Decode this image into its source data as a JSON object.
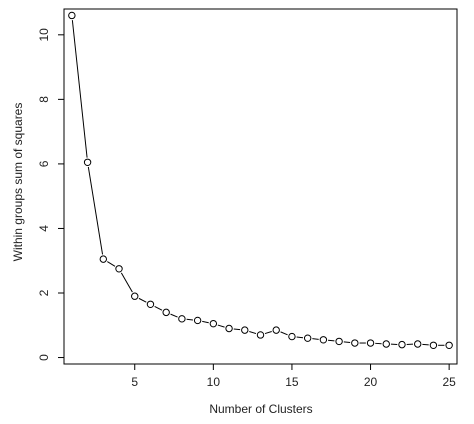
{
  "chart_data": {
    "type": "line",
    "title": "",
    "xlabel": "Number of Clusters",
    "ylabel": "Within groups sum of squares",
    "xlim": [
      0.5,
      25.5
    ],
    "ylim": [
      -0.2,
      10.8
    ],
    "grid": false,
    "legend": "none",
    "line_color": "#000000",
    "marker": "open-circle",
    "xticks": [
      5,
      10,
      15,
      20,
      25
    ],
    "yticks": [
      0,
      2,
      4,
      6,
      8,
      10
    ],
    "series": [
      {
        "x": [
          1,
          2,
          3,
          4,
          5,
          6,
          7,
          8,
          9,
          10,
          11,
          12,
          13,
          14,
          15,
          16,
          17,
          18,
          19,
          20,
          21,
          22,
          23,
          24,
          25
        ],
        "y": [
          10.6,
          6.05,
          3.05,
          2.75,
          1.9,
          1.65,
          1.4,
          1.2,
          1.15,
          1.05,
          0.9,
          0.85,
          0.7,
          0.85,
          0.65,
          0.6,
          0.55,
          0.5,
          0.45,
          0.45,
          0.42,
          0.4,
          0.42,
          0.38,
          0.38
        ]
      }
    ]
  }
}
